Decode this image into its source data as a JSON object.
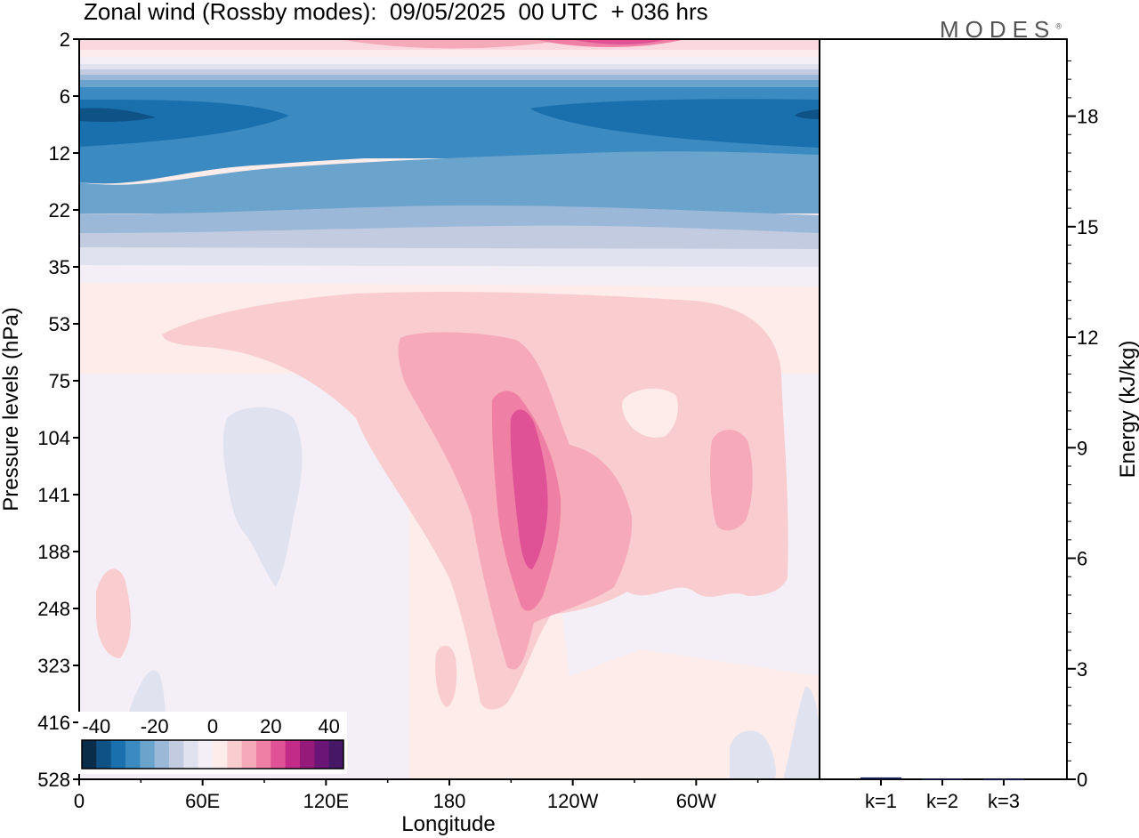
{
  "title": "Zonal wind (Rossby modes):  09/05/2025  00 UTC  + 036 hrs",
  "brand": "MODES",
  "brand_mark": "®",
  "chart_data": [
    {
      "type": "heatmap",
      "title": "Zonal wind (Rossby modes):  09/05/2025  00 UTC  + 036 hrs",
      "xlabel": "Longitude",
      "ylabel": "Pressure levels (hPa)",
      "x_ticks": [
        "0",
        "60E",
        "120E",
        "180",
        "120W",
        "60W"
      ],
      "x_tick_values": [
        0,
        60,
        120,
        180,
        240,
        300
      ],
      "xlim": [
        0,
        360
      ],
      "y_ticks": [
        2,
        6,
        12,
        22,
        35,
        53,
        75,
        104,
        141,
        188,
        248,
        323,
        416,
        528
      ],
      "y_scale": "categorical (model levels)",
      "colorbar": {
        "ticks": [
          "-40",
          "-20",
          "0",
          "20",
          "40"
        ],
        "tick_values": [
          -40,
          -20,
          0,
          20,
          40
        ],
        "range": [
          -45,
          45
        ],
        "step": 5,
        "colors": [
          "#0a2d4a",
          "#0e5286",
          "#1a6fad",
          "#3b8bc2",
          "#6aa3cc",
          "#9bb8d8",
          "#c2cbe0",
          "#e1e2f0",
          "#f4eff6",
          "#fdece9",
          "#f9cdcf",
          "#f6a9b8",
          "#f07fa6",
          "#e05296",
          "#c22b87",
          "#961a79",
          "#6b1577",
          "#451765"
        ],
        "placement": "bottom-left inset"
      },
      "regions": [
        {
          "p_top": 2,
          "p_bottom": 4,
          "value": 15,
          "note": "max ~30 near 130W"
        },
        {
          "p_top": 4,
          "p_bottom": 6,
          "value": 0
        },
        {
          "p_top": 6,
          "p_bottom": 10,
          "value": -30,
          "note": "min ~-40 near 20E and 15W"
        },
        {
          "p_top": 10,
          "p_bottom": 18,
          "value": -25
        },
        {
          "p_top": 18,
          "p_bottom": 30,
          "value": -15
        },
        {
          "p_top": 30,
          "p_bottom": 35,
          "value": -5
        },
        {
          "p_top": 35,
          "p_bottom": 528,
          "value": 2
        },
        {
          "lon": [
            40,
            320
          ],
          "p_top": 53,
          "p_bottom": 260,
          "value": 7
        },
        {
          "lon": [
            125,
            215
          ],
          "p_top": 60,
          "p_bottom": 410,
          "value": 12
        },
        {
          "lon": [
            160,
            215
          ],
          "p_top": 90,
          "p_bottom": 300,
          "value": 17
        },
        {
          "lon": [
            172,
            195
          ],
          "p_top": 104,
          "p_bottom": 200,
          "value": 22,
          "note": "jet core"
        },
        {
          "lon": [
            308,
            327
          ],
          "p_top": 104,
          "p_bottom": 180,
          "value": 12
        },
        {
          "lon": [
            265,
            292
          ],
          "p_top": 75,
          "p_bottom": 104,
          "value": 2
        },
        {
          "lon": [
            70,
            110
          ],
          "p_top": 104,
          "p_bottom": 220,
          "value": -3
        }
      ]
    },
    {
      "type": "bar",
      "categories": [
        "k=1",
        "k=2",
        "k=3"
      ],
      "values": [
        0.05,
        0.02,
        0.01
      ],
      "ylabel": "Energy (kJ/kg)",
      "ylim": [
        0,
        20
      ],
      "y_ticks": [
        0,
        3,
        6,
        9,
        12,
        15,
        18
      ],
      "bar_color": "#151b4e"
    }
  ]
}
